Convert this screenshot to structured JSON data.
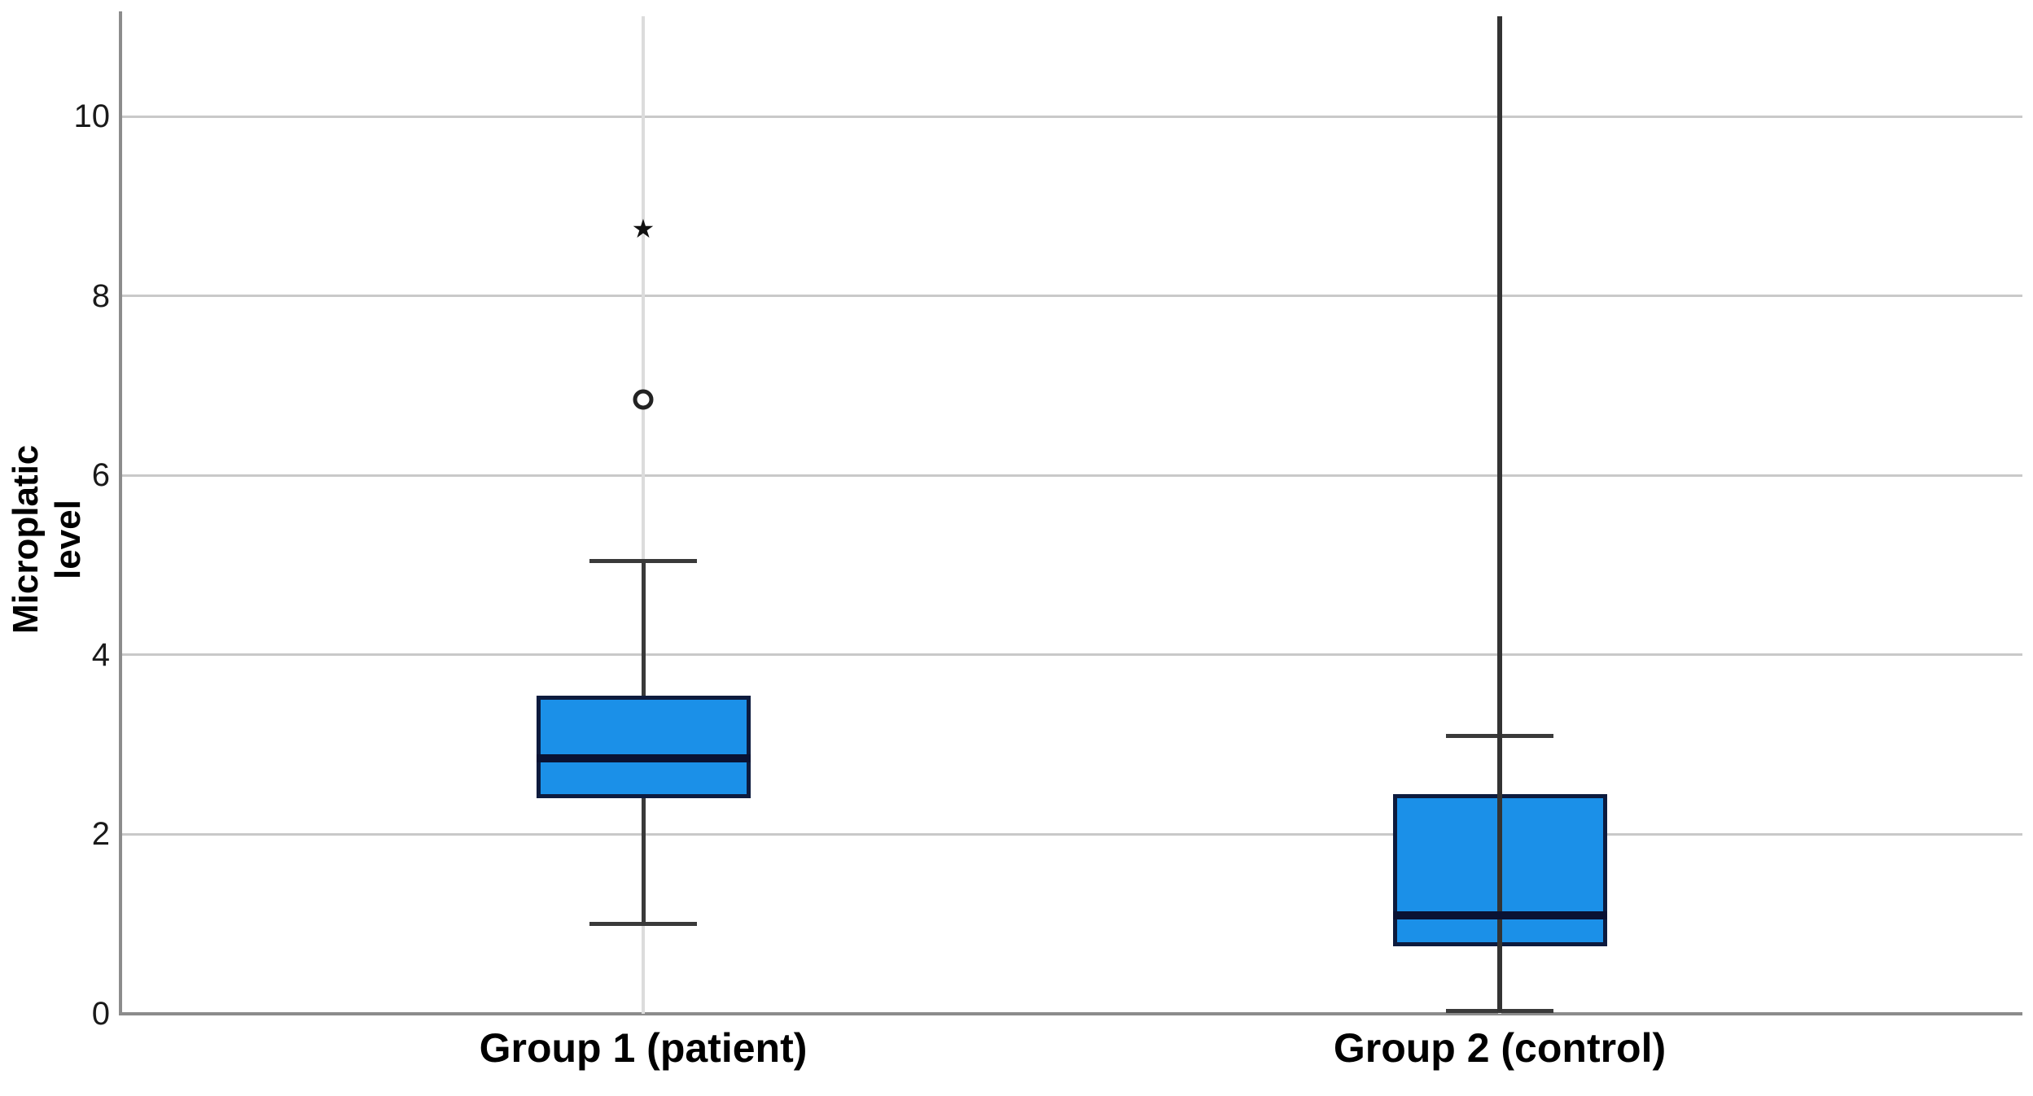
{
  "chart_data": {
    "type": "boxplot",
    "title": "",
    "ylabel": "Microplatic level",
    "xlabel": "",
    "ylim": [
      0,
      11.12
    ],
    "yticks": [
      0,
      2,
      4,
      6,
      8,
      10
    ],
    "grid": "horizontal",
    "legend": "none",
    "categories": [
      "Group 1 (patient)",
      "Group 2 (control)"
    ],
    "series": [
      {
        "category": "Group 1 (patient)",
        "whisker_low": 1.0,
        "q1": 2.4,
        "median": 2.85,
        "q3": 3.55,
        "whisker_high": 5.05,
        "outliers": [
          {
            "marker": "circle",
            "value": 6.85
          },
          {
            "marker": "star",
            "value": 8.75
          }
        ],
        "extreme_line_to_plot_top": false
      },
      {
        "category": "Group 2 (control)",
        "whisker_low": 0.03,
        "q1": 0.75,
        "median": 1.1,
        "q3": 2.45,
        "whisker_high": 3.1,
        "outliers": [],
        "extreme_line_to_plot_top": true,
        "extreme_line_top_value": 11.12
      }
    ],
    "colors": {
      "box_fill": "#1B90E8",
      "box_border": "#0d1b3e",
      "median_line": "#0a1233",
      "whisker": "#3a3a3a",
      "extreme_line": "#333333",
      "gridline": "#c9c9c9",
      "axis_line": "#8c8c8c",
      "category_guide_line": "#dcdcdc",
      "outlier_stroke": "#222222",
      "text": "#000000",
      "background": "#ffffff"
    }
  }
}
